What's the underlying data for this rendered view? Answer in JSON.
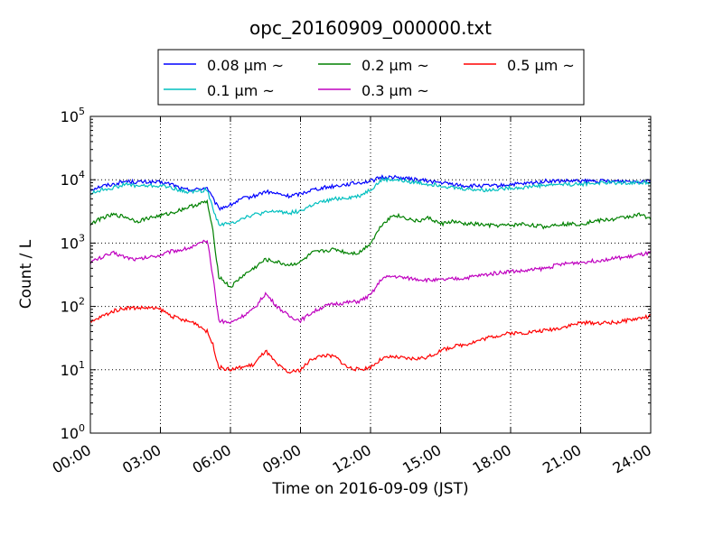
{
  "chart_data": {
    "type": "line",
    "title": "opc_20160909_000000.txt",
    "xlabel": "Time on 2016-09-09 (JST)",
    "ylabel": "Count / L",
    "xlim": [
      "00:00",
      "24:00"
    ],
    "x_ticks": [
      "00:00",
      "03:00",
      "06:00",
      "09:00",
      "12:00",
      "15:00",
      "18:00",
      "21:00",
      "24:00"
    ],
    "y_scale": "log",
    "ylim": [
      1,
      100000
    ],
    "y_ticks": [
      {
        "base": "10",
        "exp": "0"
      },
      {
        "base": "10",
        "exp": "1"
      },
      {
        "base": "10",
        "exp": "2"
      },
      {
        "base": "10",
        "exp": "3"
      },
      {
        "base": "10",
        "exp": "4"
      },
      {
        "base": "10",
        "exp": "5"
      }
    ],
    "grid": true,
    "legend_position": "top (above plot)",
    "x": [
      "00:00",
      "00:30",
      "01:00",
      "01:30",
      "02:00",
      "02:30",
      "03:00",
      "03:30",
      "04:00",
      "04:30",
      "05:00",
      "05:15",
      "05:30",
      "06:00",
      "06:30",
      "07:00",
      "07:30",
      "08:00",
      "08:30",
      "09:00",
      "09:30",
      "10:00",
      "10:30",
      "11:00",
      "11:30",
      "12:00",
      "12:30",
      "13:00",
      "13:30",
      "14:00",
      "14:30",
      "15:00",
      "15:30",
      "16:00",
      "16:30",
      "17:00",
      "17:30",
      "18:00",
      "18:30",
      "19:00",
      "19:30",
      "20:00",
      "20:30",
      "21:00",
      "21:30",
      "22:00",
      "22:30",
      "23:00",
      "23:30",
      "24:00"
    ],
    "series": [
      {
        "name": "0.08",
        "color": "#0000ff",
        "values": [
          7000,
          8000,
          8500,
          9500,
          9200,
          9200,
          9000,
          8500,
          7000,
          7000,
          7500,
          5000,
          3500,
          4000,
          5000,
          5500,
          6500,
          6000,
          5500,
          6000,
          7000,
          7500,
          8000,
          8500,
          9000,
          9500,
          11000,
          11000,
          10500,
          10000,
          9500,
          9000,
          8500,
          8000,
          8000,
          8000,
          8000,
          8500,
          8500,
          9000,
          9500,
          9500,
          9500,
          9500,
          9500,
          9500,
          9500,
          9500,
          9500,
          10000
        ]
      },
      {
        "name": "0.1",
        "color": "#00bfbf",
        "values": [
          6000,
          7000,
          7500,
          8500,
          8000,
          8000,
          8000,
          7500,
          6500,
          6500,
          7000,
          3500,
          2000,
          2000,
          2500,
          2800,
          3000,
          3200,
          3000,
          3200,
          4000,
          4500,
          5000,
          5200,
          5500,
          7000,
          10000,
          10000,
          9500,
          9000,
          8500,
          8200,
          7500,
          7200,
          7000,
          6800,
          7200,
          7500,
          7500,
          8000,
          8200,
          8500,
          8500,
          8500,
          8800,
          9000,
          9000,
          9000,
          9000,
          9200
        ]
      },
      {
        "name": "0.2",
        "color": "#008000",
        "values": [
          2000,
          2500,
          2800,
          2600,
          2200,
          2500,
          2700,
          3000,
          3500,
          4000,
          4500,
          1500,
          300,
          200,
          300,
          400,
          550,
          500,
          450,
          500,
          700,
          750,
          800,
          700,
          700,
          1000,
          2000,
          2800,
          2500,
          2200,
          2500,
          2000,
          2200,
          2000,
          2000,
          1900,
          1900,
          1900,
          2000,
          1900,
          1800,
          2000,
          2000,
          2000,
          2200,
          2300,
          2400,
          2600,
          2800,
          2500
        ]
      },
      {
        "name": "0.3",
        "color": "#bf00bf",
        "values": [
          500,
          600,
          700,
          600,
          550,
          600,
          650,
          750,
          800,
          900,
          1100,
          300,
          60,
          55,
          70,
          90,
          160,
          100,
          70,
          60,
          80,
          100,
          110,
          115,
          120,
          150,
          280,
          300,
          280,
          270,
          260,
          260,
          270,
          280,
          300,
          320,
          340,
          360,
          360,
          380,
          400,
          450,
          480,
          500,
          520,
          550,
          580,
          600,
          650,
          700
        ]
      },
      {
        "name": "0.5",
        "color": "#ff0000",
        "values": [
          55,
          70,
          85,
          95,
          95,
          95,
          90,
          70,
          60,
          55,
          40,
          25,
          11,
          10,
          11,
          12,
          20,
          12,
          9,
          10,
          15,
          17,
          16,
          11,
          10,
          11,
          15,
          16,
          15,
          15,
          16,
          20,
          23,
          25,
          28,
          32,
          35,
          38,
          38,
          40,
          42,
          45,
          50,
          55,
          55,
          55,
          56,
          60,
          65,
          70
        ]
      }
    ]
  },
  "legend_unit": "μm",
  "legend_suffix": "~"
}
